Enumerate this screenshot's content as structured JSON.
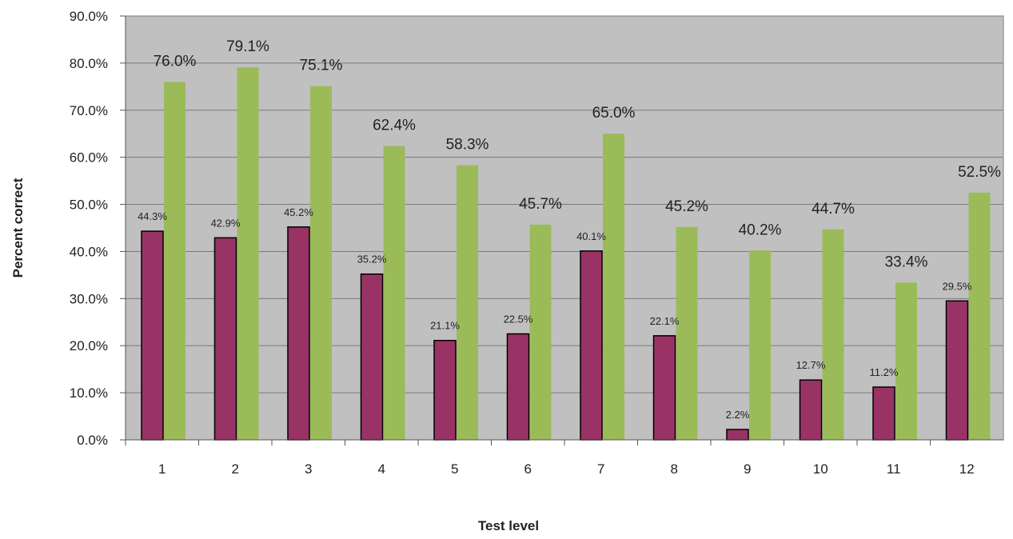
{
  "chart_data": {
    "type": "bar",
    "title": "",
    "xlabel": "Test level",
    "ylabel": "Percent correct",
    "ylim": [
      0,
      90
    ],
    "ytick_step": 10,
    "ytick_labels": [
      "0.0%",
      "10.0%",
      "20.0%",
      "30.0%",
      "40.0%",
      "50.0%",
      "60.0%",
      "70.0%",
      "80.0%",
      "90.0%"
    ],
    "grid": true,
    "legend": "none",
    "categories": [
      "1",
      "2",
      "3",
      "4",
      "5",
      "6",
      "7",
      "8",
      "9",
      "10",
      "11",
      "12"
    ],
    "series": [
      {
        "color": "#993366",
        "values": [
          44.3,
          42.9,
          45.2,
          35.2,
          21.1,
          22.5,
          40.1,
          22.1,
          2.2,
          12.7,
          11.2,
          29.5
        ],
        "data_labels": [
          "44.3%",
          "42.9%",
          "45.2%",
          "35.2%",
          "21.1%",
          "22.5%",
          "40.1%",
          "22.1%",
          "2.2%",
          "12.7%",
          "11.2%",
          "29.5%"
        ]
      },
      {
        "color": "#9BBB59",
        "values": [
          76.0,
          79.1,
          75.1,
          62.4,
          58.3,
          45.7,
          65.0,
          45.2,
          40.2,
          44.7,
          33.4,
          52.5
        ],
        "data_labels": [
          "76.0%",
          "79.1%",
          "75.1%",
          "62.4%",
          "58.3%",
          "45.7%",
          "65.0%",
          "45.2%",
          "40.2%",
          "44.7%",
          "33.4%",
          "52.5%"
        ]
      }
    ],
    "plot_background": "#C0C0C0"
  }
}
